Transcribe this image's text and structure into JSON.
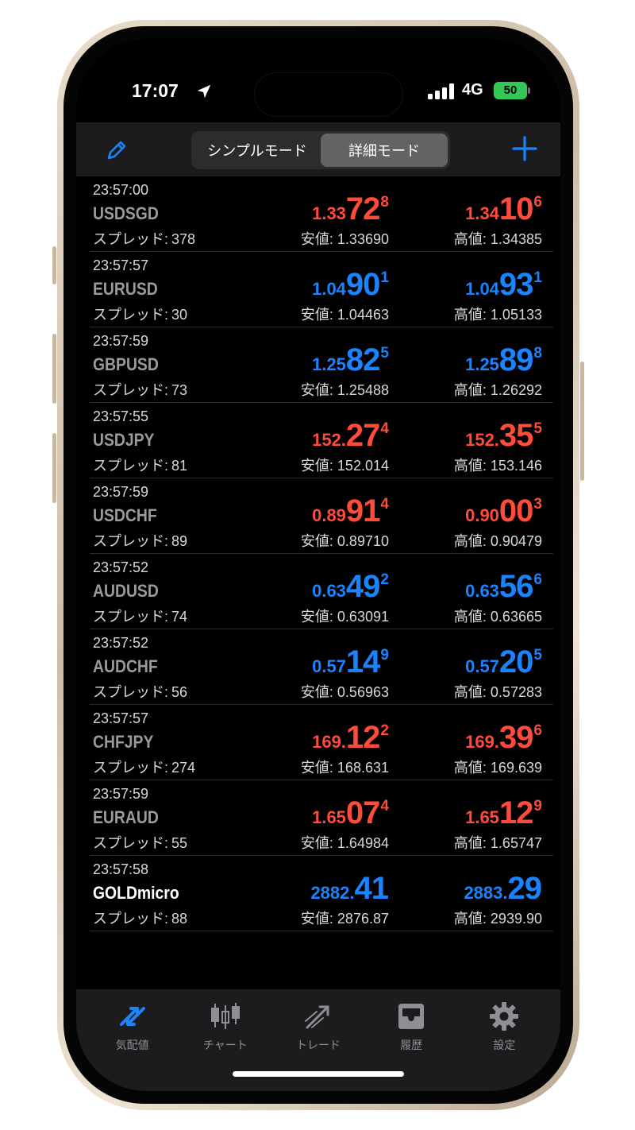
{
  "status_bar": {
    "time": "17:07",
    "network": "4G",
    "battery": "50"
  },
  "header": {
    "segments": [
      {
        "label": "シンプルモード",
        "active": false
      },
      {
        "label": "詳細モード",
        "active": true
      }
    ]
  },
  "labels": {
    "spread": "スプレッド:",
    "low": "安値:",
    "high": "高値:"
  },
  "quotes": [
    {
      "time": "23:57:00",
      "symbol": "USDSGD",
      "spread": "378",
      "direction": "down",
      "bid": {
        "small": "1.33",
        "big": "72",
        "pip": "8"
      },
      "ask": {
        "small": "1.34",
        "big": "10",
        "pip": "6"
      },
      "low": "1.33690",
      "high": "1.34385"
    },
    {
      "time": "23:57:57",
      "symbol": "EURUSD",
      "spread": "30",
      "direction": "up",
      "bid": {
        "small": "1.04",
        "big": "90",
        "pip": "1"
      },
      "ask": {
        "small": "1.04",
        "big": "93",
        "pip": "1"
      },
      "low": "1.04463",
      "high": "1.05133"
    },
    {
      "time": "23:57:59",
      "symbol": "GBPUSD",
      "spread": "73",
      "direction": "up",
      "bid": {
        "small": "1.25",
        "big": "82",
        "pip": "5"
      },
      "ask": {
        "small": "1.25",
        "big": "89",
        "pip": "8"
      },
      "low": "1.25488",
      "high": "1.26292"
    },
    {
      "time": "23:57:55",
      "symbol": "USDJPY",
      "spread": "81",
      "direction": "down",
      "bid": {
        "small": "152.",
        "big": "27",
        "pip": "4"
      },
      "ask": {
        "small": "152.",
        "big": "35",
        "pip": "5"
      },
      "low": "152.014",
      "high": "153.146"
    },
    {
      "time": "23:57:59",
      "symbol": "USDCHF",
      "spread": "89",
      "direction": "down",
      "bid": {
        "small": "0.89",
        "big": "91",
        "pip": "4"
      },
      "ask": {
        "small": "0.90",
        "big": "00",
        "pip": "3"
      },
      "low": "0.89710",
      "high": "0.90479"
    },
    {
      "time": "23:57:52",
      "symbol": "AUDUSD",
      "spread": "74",
      "direction": "up",
      "bid": {
        "small": "0.63",
        "big": "49",
        "pip": "2"
      },
      "ask": {
        "small": "0.63",
        "big": "56",
        "pip": "6"
      },
      "low": "0.63091",
      "high": "0.63665"
    },
    {
      "time": "23:57:52",
      "symbol": "AUDCHF",
      "spread": "56",
      "direction": "up",
      "bid": {
        "small": "0.57",
        "big": "14",
        "pip": "9"
      },
      "ask": {
        "small": "0.57",
        "big": "20",
        "pip": "5"
      },
      "low": "0.56963",
      "high": "0.57283"
    },
    {
      "time": "23:57:57",
      "symbol": "CHFJPY",
      "spread": "274",
      "direction": "down",
      "bid": {
        "small": "169.",
        "big": "12",
        "pip": "2"
      },
      "ask": {
        "small": "169.",
        "big": "39",
        "pip": "6"
      },
      "low": "168.631",
      "high": "169.639"
    },
    {
      "time": "23:57:59",
      "symbol": "EURAUD",
      "spread": "55",
      "direction": "down",
      "bid": {
        "small": "1.65",
        "big": "07",
        "pip": "4"
      },
      "ask": {
        "small": "1.65",
        "big": "12",
        "pip": "9"
      },
      "low": "1.64984",
      "high": "1.65747"
    },
    {
      "time": "23:57:58",
      "symbol": "GOLDmicro",
      "spread": "88",
      "direction": "up",
      "highlight": true,
      "bid": {
        "small": "2882.",
        "big": "41",
        "pip": ""
      },
      "ask": {
        "small": "2883.",
        "big": "29",
        "pip": ""
      },
      "low": "2876.87",
      "high": "2939.90"
    }
  ],
  "tabs": [
    {
      "label": "気配値",
      "icon": "quotes-arrows-icon",
      "active": true
    },
    {
      "label": "チャート",
      "icon": "candlestick-chart-icon",
      "active": false
    },
    {
      "label": "トレード",
      "icon": "trade-trend-icon",
      "active": false
    },
    {
      "label": "履歴",
      "icon": "history-inbox-icon",
      "active": false
    },
    {
      "label": "設定",
      "icon": "gear-icon",
      "active": false
    }
  ],
  "colors": {
    "up": "#1a84ff",
    "down": "#ff4b3a",
    "active_tab": "#1a84ff",
    "inactive_tab": "#8e8e93"
  }
}
